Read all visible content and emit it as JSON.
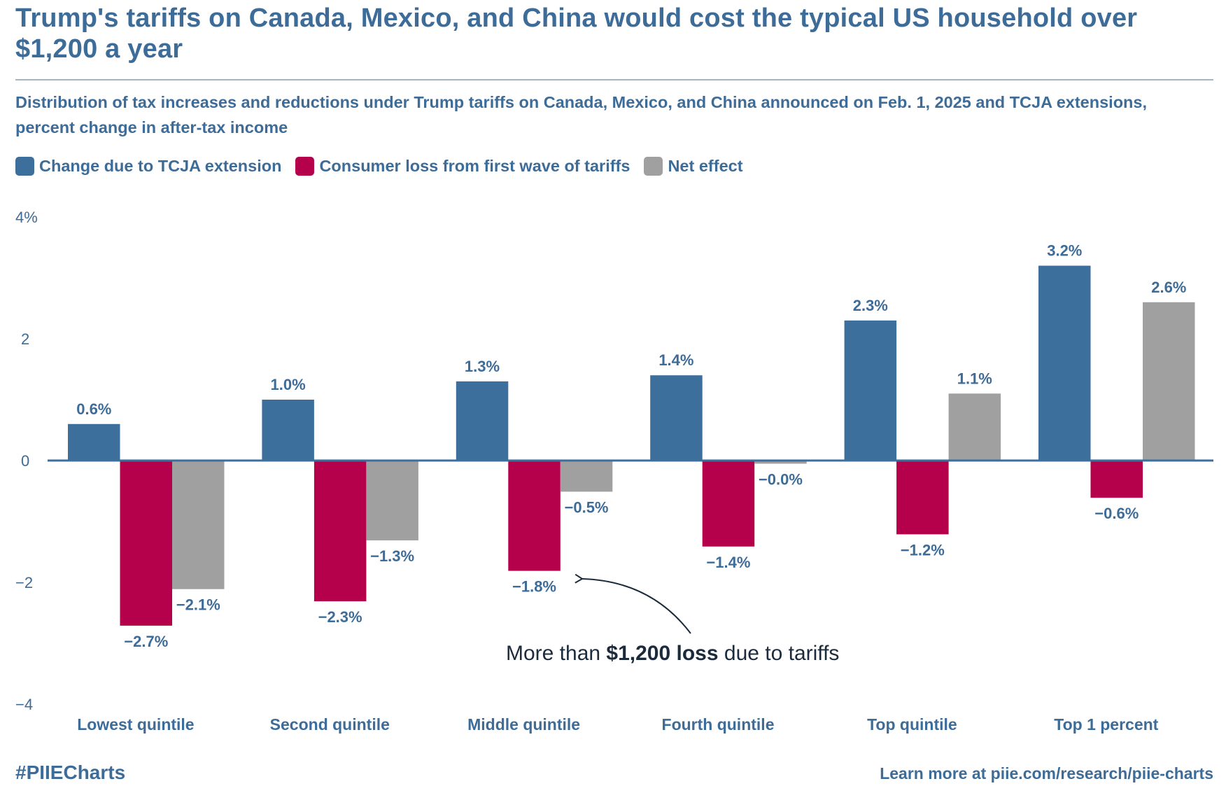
{
  "header": {
    "title": "Trump's tariffs on Canada, Mexico, and China would cost the typical US household over $1,200 a year",
    "subtitle": "Distribution of tax increases and reductions under Trump tariffs on Canada, Mexico, and China announced on Feb. 1, 2025 and TCJA extensions, percent change in after-tax income"
  },
  "legend": [
    {
      "label": "Change due to TCJA extension",
      "color": "#3d6f9c"
    },
    {
      "label": "Consumer loss from first wave of tariffs",
      "color": "#b5004b"
    },
    {
      "label": "Net effect",
      "color": "#a0a0a0"
    }
  ],
  "chart_data": {
    "type": "bar",
    "title": "Trump's tariffs on Canada, Mexico, and China would cost the typical US household over $1,200 a year",
    "xlabel": "",
    "ylabel": "",
    "ylim": [
      -4,
      4
    ],
    "yticks": [
      4,
      2,
      0,
      -2,
      -4
    ],
    "ytick_labels": [
      "4%",
      "2",
      "0",
      "−2",
      "−4"
    ],
    "grid": false,
    "legend_position": "top-left",
    "categories": [
      "Lowest quintile",
      "Second quintile",
      "Middle quintile",
      "Fourth quintile",
      "Top quintile",
      "Top 1 percent"
    ],
    "series": [
      {
        "name": "Change due to TCJA extension",
        "color": "#3d6f9c",
        "values": [
          0.6,
          1.0,
          1.3,
          1.4,
          2.3,
          3.2
        ],
        "labels": [
          "0.6%",
          "1.0%",
          "1.3%",
          "1.4%",
          "2.3%",
          "3.2%"
        ]
      },
      {
        "name": "Consumer loss from first wave of tariffs",
        "color": "#b5004b",
        "values": [
          -2.7,
          -2.3,
          -1.8,
          -1.4,
          -1.2,
          -0.6
        ],
        "labels": [
          "−2.7%",
          "−2.3%",
          "−1.8%",
          "−1.4%",
          "−1.2%",
          "−0.6%"
        ]
      },
      {
        "name": "Net effect",
        "color": "#a0a0a0",
        "values": [
          -2.1,
          -1.3,
          -0.5,
          -0.04,
          1.1,
          2.6
        ],
        "labels": [
          "−2.1%",
          "−1.3%",
          "−0.5%",
          "−0.0%",
          "1.1%",
          "2.6%"
        ]
      }
    ],
    "annotation": {
      "prefix": "More than ",
      "bold": "$1,200 loss",
      "suffix": " due to tariffs",
      "points_to": "Middle quintile"
    }
  },
  "footer": {
    "hashtag": "#PIIECharts",
    "link": "Learn more at piie.com/research/piie-charts"
  }
}
